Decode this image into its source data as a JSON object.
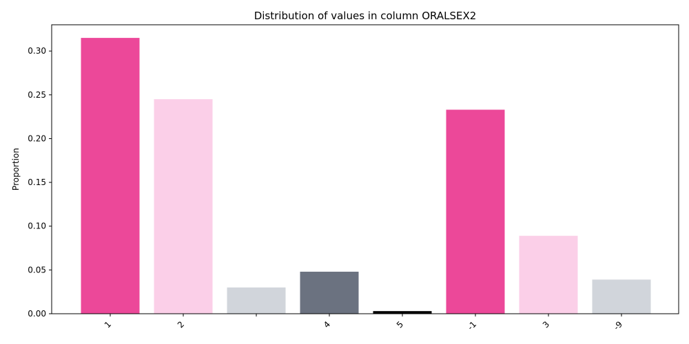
{
  "chart_data": {
    "type": "bar",
    "title": "Distribution of values in column ORALSEX2",
    "xlabel": "",
    "ylabel": "Proportion",
    "categories": [
      "1",
      "2",
      "",
      "4",
      "5",
      "-1",
      "3",
      "-9"
    ],
    "values": [
      0.315,
      0.245,
      0.03,
      0.048,
      0.003,
      0.233,
      0.089,
      0.039
    ],
    "colors": [
      "#ec4899",
      "#fbcfe8",
      "#d1d5db",
      "#6b7280",
      "#000000",
      "#ec4899",
      "#fbcfe8",
      "#d1d5db"
    ],
    "ylim": [
      0,
      0.33
    ],
    "yticks": [
      0.0,
      0.05,
      0.1,
      0.15,
      0.2,
      0.25,
      0.3
    ],
    "ytick_labels": [
      "0.00",
      "0.05",
      "0.10",
      "0.15",
      "0.20",
      "0.25",
      "0.30"
    ],
    "grid": false,
    "legend": "none"
  }
}
